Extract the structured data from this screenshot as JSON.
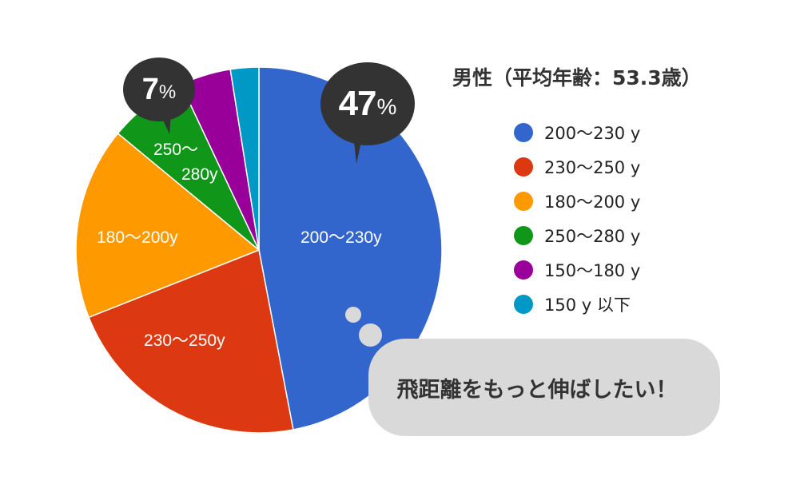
{
  "chart_data": {
    "type": "pie",
    "title": "男性（平均年齢：53.3歳）",
    "start_angle": "top, clockwise",
    "categories": [
      "200〜230 y",
      "230〜250 y",
      "180〜200 y",
      "250〜280 y",
      "150〜180 y",
      "150 y 以下"
    ],
    "values": [
      47,
      22,
      17,
      7,
      4.5,
      2.5
    ],
    "unit": "%",
    "colors": [
      "#3366cc",
      "#dc3912",
      "#ff9900",
      "#109618",
      "#990099",
      "#0099c6"
    ],
    "slice_labels": [
      "200〜230y",
      "230〜250y",
      "180〜200y",
      "250〜\n280y",
      "",
      ""
    ],
    "legend_position": "right",
    "annotations": [
      {
        "target": "200〜230 y",
        "text": "47%"
      },
      {
        "target": "250〜280 y",
        "text": "7%"
      }
    ]
  },
  "title": "男性（平均年齢：53.3歳）",
  "legend": [
    {
      "label": "200〜230 y",
      "color": "#3366cc"
    },
    {
      "label": "230〜250 y",
      "color": "#dc3912"
    },
    {
      "label": "180〜200 y",
      "color": "#ff9900"
    },
    {
      "label": "250〜280 y",
      "color": "#109618"
    },
    {
      "label": "150〜180 y",
      "color": "#990099"
    },
    {
      "label": "150 y 以下",
      "color": "#0099c6"
    }
  ],
  "slice_labels": {
    "blue": "200〜230y",
    "red": "230〜250y",
    "orange": "180〜200y",
    "green_line1": "250〜",
    "green_line2": "280y"
  },
  "callouts": {
    "big": {
      "num": "47",
      "pct": "%"
    },
    "small": {
      "num": "7",
      "pct": "%"
    }
  },
  "speech": "飛距離をもっと伸ばしたい！"
}
